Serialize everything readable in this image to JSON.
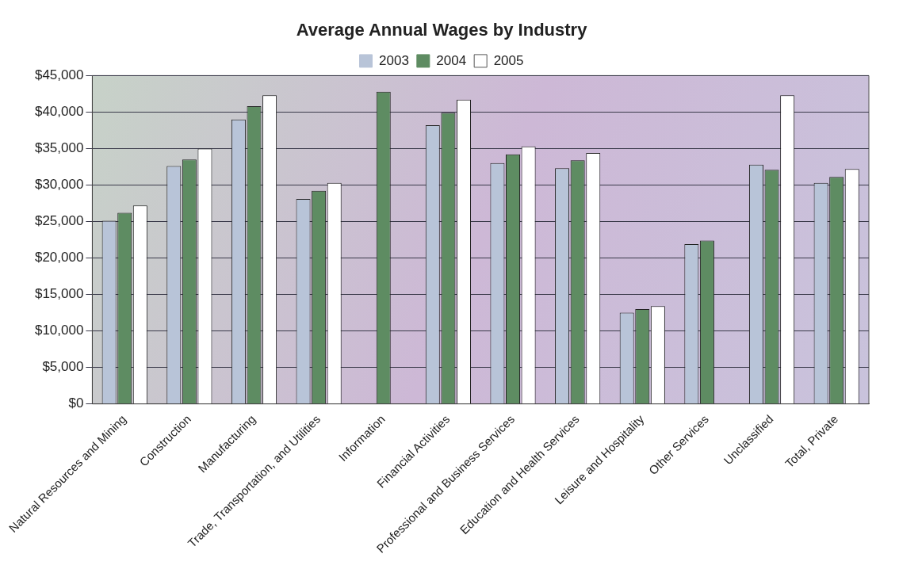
{
  "chart_data": {
    "type": "bar",
    "title": "Average Annual Wages by Industry",
    "categories": [
      "Natural Resources and Mining",
      "Construction",
      "Manufacturing",
      "Trade, Transportation, and Utilities",
      "Information",
      "Financial Activities",
      "Professional and Business Services",
      "Education and Health Services",
      "Leisure and Hospitality",
      "Other Services",
      "Unclassified",
      "Total, Private"
    ],
    "series": [
      {
        "name": "2003",
        "color": "#b8c4d8",
        "values": [
          25100,
          32600,
          39000,
          28100,
          null,
          38200,
          33000,
          32300,
          12500,
          21900,
          32800,
          30300
        ]
      },
      {
        "name": "2004",
        "color": "#5e8c62",
        "values": [
          26200,
          33500,
          40800,
          29200,
          42800,
          39900,
          34200,
          33400,
          13000,
          22400,
          32100,
          31100
        ]
      },
      {
        "name": "2005",
        "color": "#ffffff",
        "values": [
          27200,
          35000,
          42300,
          30300,
          null,
          41700,
          35300,
          34400,
          13400,
          null,
          42300,
          32200
        ]
      }
    ],
    "ylim": [
      0,
      45000
    ],
    "yticks": [
      {
        "value": 0,
        "label": "$0"
      },
      {
        "value": 5000,
        "label": "$5,000"
      },
      {
        "value": 10000,
        "label": "$10,000"
      },
      {
        "value": 15000,
        "label": "$15,000"
      },
      {
        "value": 20000,
        "label": "$20,000"
      },
      {
        "value": 25000,
        "label": "$25,000"
      },
      {
        "value": 30000,
        "label": "$30,000"
      },
      {
        "value": 35000,
        "label": "$35,000"
      },
      {
        "value": 40000,
        "label": "$40,000"
      },
      {
        "value": 45000,
        "label": "$45,000"
      }
    ],
    "grid": "y",
    "legend": "top"
  }
}
